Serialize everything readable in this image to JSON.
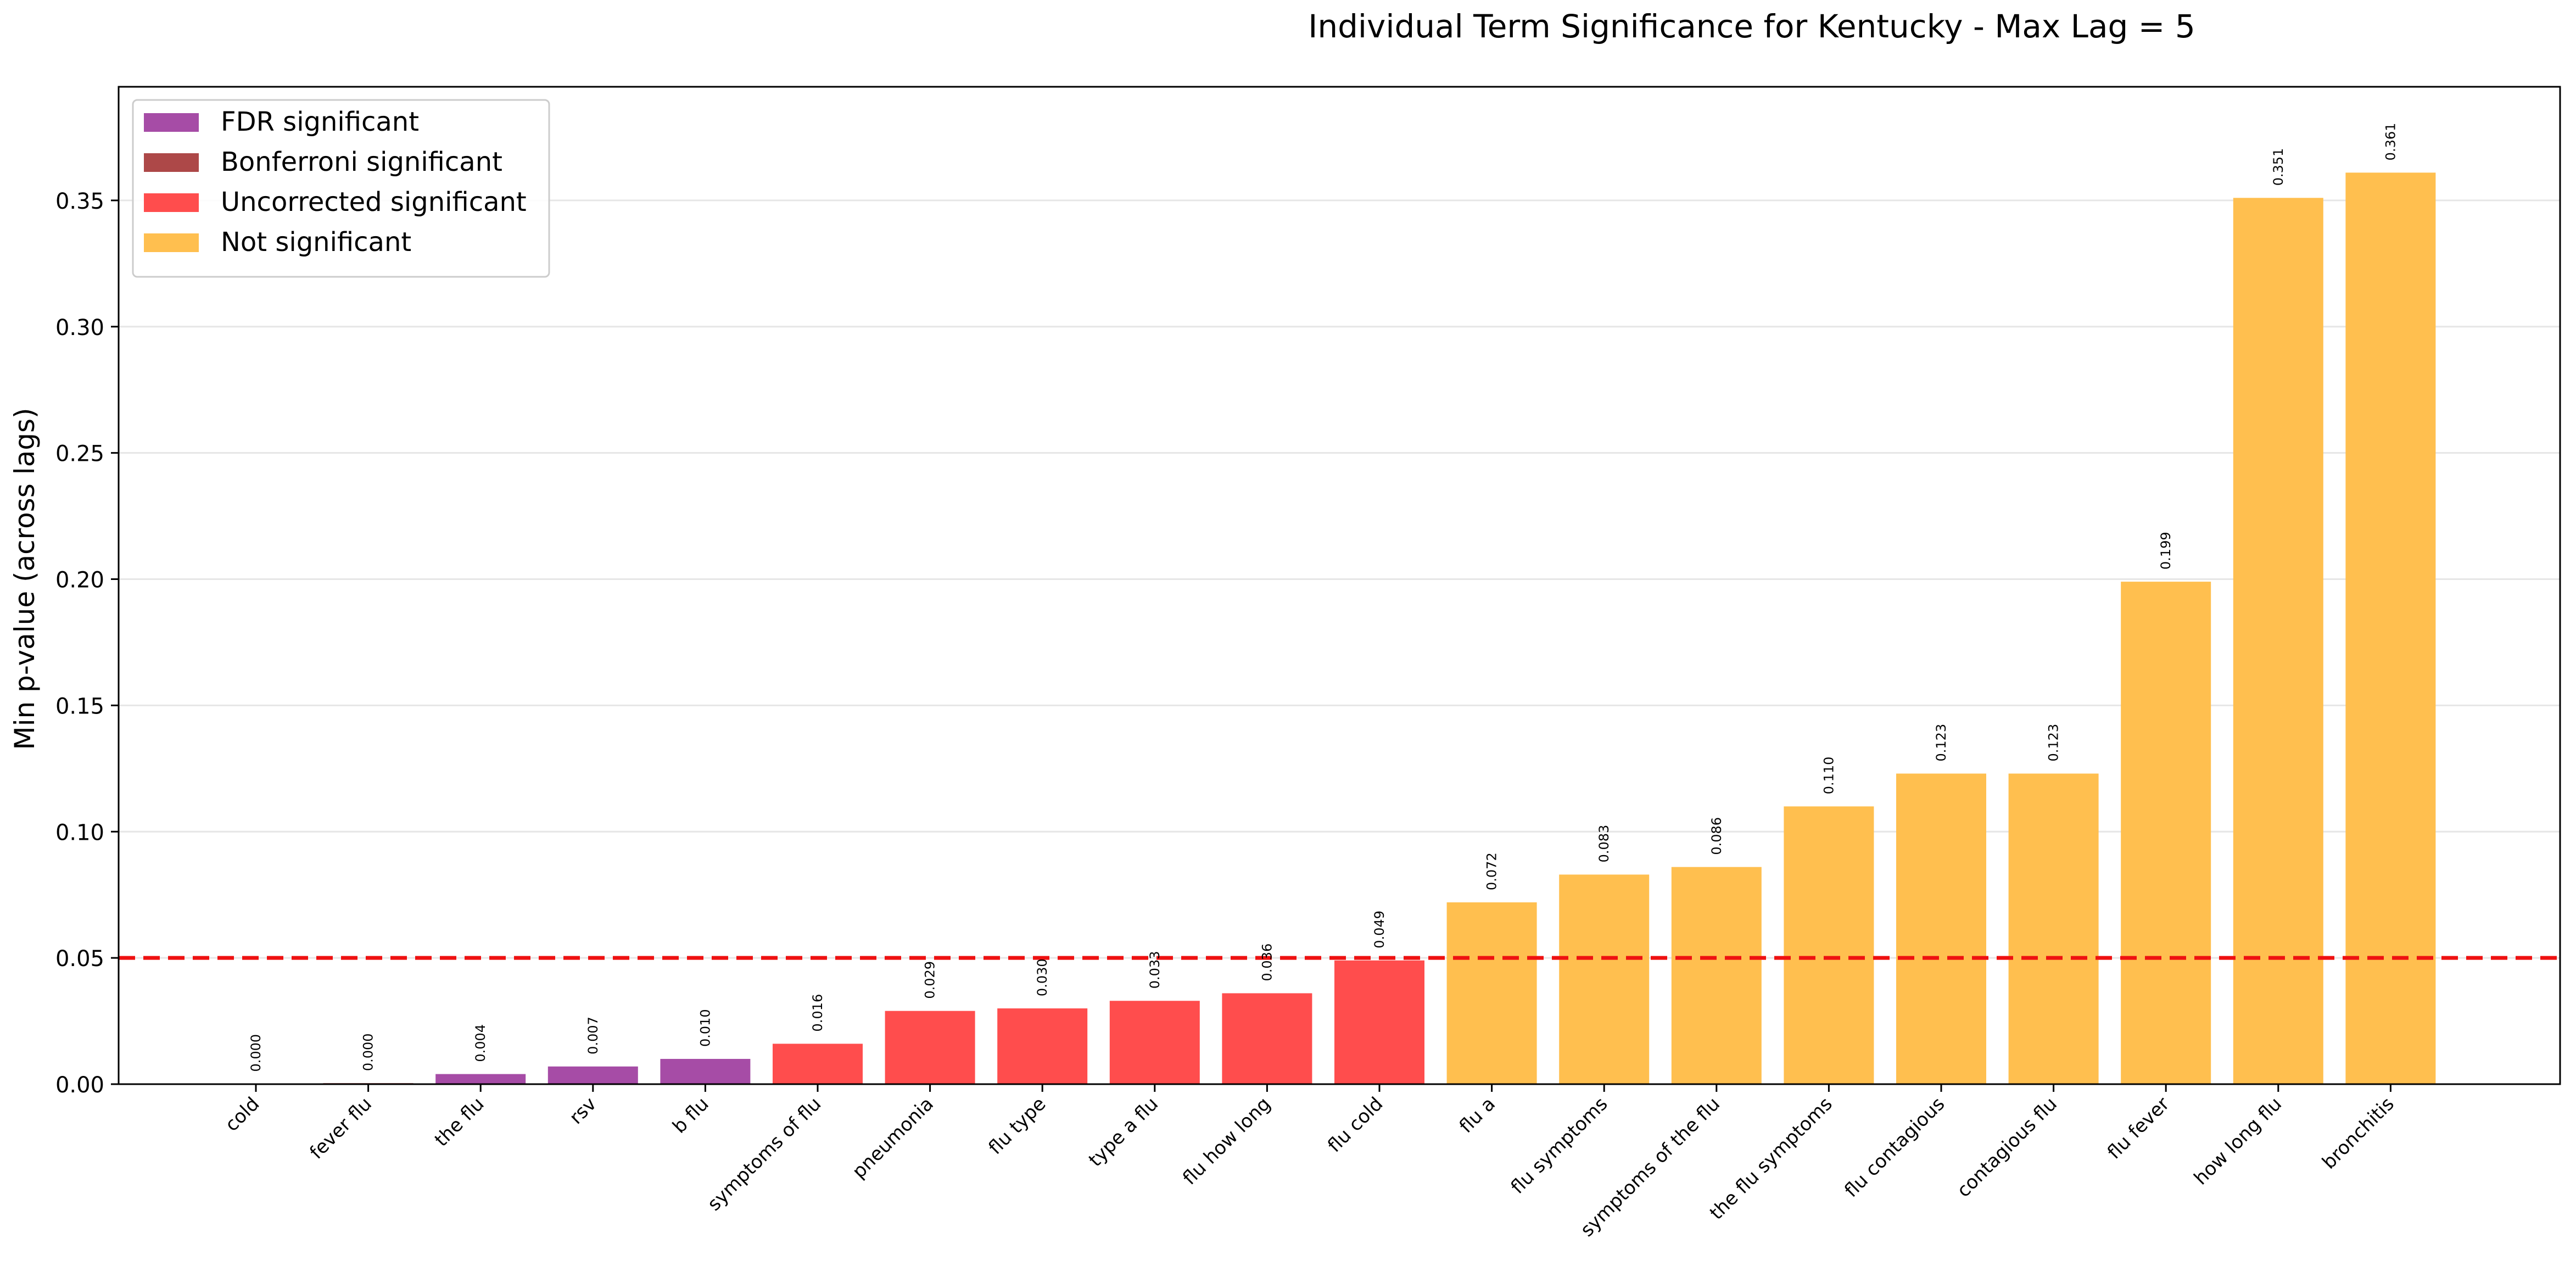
{
  "chart_data": {
    "type": "bar",
    "title": "Individual Term Significance for Kentucky - Max Lag = 5",
    "xlabel": "",
    "ylabel": "Min p-value (across lags)",
    "ylim": [
      0,
      0.395
    ],
    "yticks": [
      "0.00",
      "0.05",
      "0.10",
      "0.15",
      "0.20",
      "0.25",
      "0.30",
      "0.35"
    ],
    "grid": "horizontal",
    "legend_position": "top-left",
    "threshold_line": {
      "value": 0.05,
      "style": "dashed",
      "color": "#ee1111"
    },
    "legend": [
      {
        "label": "FDR significant",
        "color": "#a64ca6"
      },
      {
        "label": "Bonferroni significant",
        "color": "#ad4848"
      },
      {
        "label": "Uncorrected significant",
        "color": "#ff4d4d"
      },
      {
        "label": "Not significant",
        "color": "#ffbf4f"
      }
    ],
    "categories": [
      "cold",
      "fever flu",
      "the flu",
      "rsv",
      "b flu",
      "symptoms of flu",
      "pneumonia",
      "flu type",
      "type a flu",
      "flu how long",
      "flu cold",
      "flu a",
      "flu symptoms",
      "symptoms of the flu",
      "the flu symptoms",
      "flu contagious",
      "contagious flu",
      "flu fever",
      "how long flu",
      "bronchitis"
    ],
    "values": [
      0.0001,
      0.0004,
      0.004,
      0.007,
      0.01,
      0.016,
      0.029,
      0.03,
      0.033,
      0.036,
      0.049,
      0.072,
      0.083,
      0.086,
      0.11,
      0.123,
      0.123,
      0.199,
      0.351,
      0.361
    ],
    "value_labels": [
      "0.000",
      "0.000",
      "0.004",
      "0.007",
      "0.010",
      "0.016",
      "0.029",
      "0.030",
      "0.033",
      "0.036",
      "0.049",
      "0.072",
      "0.083",
      "0.086",
      "0.110",
      "0.123",
      "0.123",
      "0.199",
      "0.351",
      "0.361"
    ],
    "significance": [
      "FDR significant",
      "Bonferroni significant",
      "FDR significant",
      "FDR significant",
      "FDR significant",
      "Uncorrected significant",
      "Uncorrected significant",
      "Uncorrected significant",
      "Uncorrected significant",
      "Uncorrected significant",
      "Uncorrected significant",
      "Not significant",
      "Not significant",
      "Not significant",
      "Not significant",
      "Not significant",
      "Not significant",
      "Not significant",
      "Not significant",
      "Not significant"
    ]
  }
}
